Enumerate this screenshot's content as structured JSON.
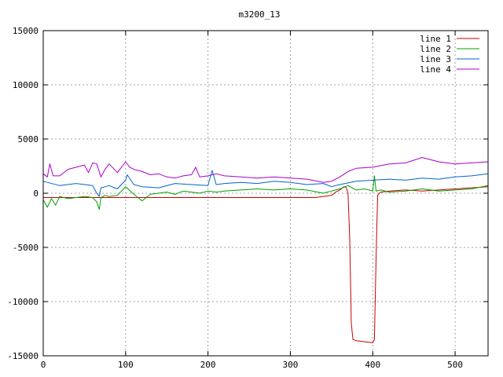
{
  "chart_data": {
    "type": "line",
    "title": "m3200_13",
    "xlabel": "",
    "ylabel": "",
    "xlim": [
      0,
      540
    ],
    "ylim": [
      -15000,
      15000
    ],
    "x_ticks": [
      0,
      100,
      200,
      300,
      400,
      500
    ],
    "y_ticks": [
      -15000,
      -10000,
      -5000,
      0,
      5000,
      10000,
      15000
    ],
    "x_tick_labels": [
      "0",
      "100",
      "200",
      "300",
      "400",
      "500"
    ],
    "y_tick_labels": [
      "-15000",
      "-10000",
      "-5000",
      "0",
      "5000",
      "10000",
      "15000"
    ],
    "grid": true,
    "legend_position": "top-right",
    "series": [
      {
        "name": "line 1",
        "color": "#cc0000",
        "x": [
          0,
          50,
          100,
          150,
          200,
          250,
          300,
          330,
          340,
          350,
          355,
          360,
          365,
          368,
          370,
          372,
          374,
          376,
          380,
          390,
          400,
          402,
          404,
          406,
          408,
          410,
          420,
          440,
          460,
          480,
          500,
          520,
          540
        ],
        "values": [
          -400,
          -400,
          -400,
          -400,
          -400,
          -400,
          -400,
          -400,
          -300,
          -200,
          100,
          300,
          600,
          500,
          0,
          -4000,
          -12000,
          -13500,
          -13600,
          -13700,
          -13800,
          -13500,
          -6000,
          -200,
          0,
          100,
          200,
          300,
          200,
          300,
          400,
          500,
          600
        ]
      },
      {
        "name": "line 2",
        "color": "#00a000",
        "x": [
          0,
          5,
          10,
          15,
          20,
          30,
          40,
          50,
          60,
          65,
          68,
          70,
          75,
          80,
          90,
          100,
          110,
          120,
          130,
          140,
          150,
          160,
          170,
          180,
          190,
          200,
          210,
          220,
          240,
          260,
          280,
          300,
          320,
          340,
          350,
          360,
          370,
          380,
          390,
          400,
          402,
          404,
          410,
          420,
          440,
          460,
          480,
          500,
          520,
          540
        ],
        "values": [
          -600,
          -1300,
          -500,
          -1100,
          -300,
          -500,
          -400,
          -300,
          -400,
          -800,
          -1500,
          -400,
          -200,
          -300,
          -200,
          600,
          -100,
          -700,
          -100,
          0,
          100,
          -100,
          200,
          100,
          0,
          200,
          100,
          200,
          300,
          400,
          300,
          400,
          300,
          0,
          200,
          400,
          700,
          300,
          400,
          200,
          1600,
          200,
          300,
          100,
          200,
          400,
          200,
          300,
          400,
          700
        ]
      },
      {
        "name": "line 3",
        "color": "#0066cc",
        "x": [
          0,
          20,
          40,
          60,
          65,
          68,
          70,
          80,
          90,
          100,
          102,
          110,
          120,
          140,
          160,
          180,
          200,
          205,
          210,
          220,
          240,
          260,
          280,
          300,
          320,
          340,
          350,
          360,
          380,
          400,
          420,
          440,
          460,
          480,
          500,
          520,
          540
        ],
        "values": [
          1100,
          700,
          900,
          700,
          0,
          -300,
          500,
          700,
          400,
          1200,
          1700,
          800,
          600,
          500,
          900,
          800,
          700,
          2100,
          800,
          900,
          1000,
          900,
          1100,
          1000,
          800,
          900,
          600,
          800,
          1100,
          1200,
          1300,
          1200,
          1400,
          1300,
          1500,
          1600,
          1800
        ]
      },
      {
        "name": "line 4",
        "color": "#aa00cc",
        "x": [
          0,
          5,
          8,
          12,
          20,
          30,
          40,
          50,
          55,
          60,
          65,
          70,
          75,
          80,
          90,
          100,
          105,
          110,
          120,
          130,
          140,
          150,
          160,
          170,
          180,
          185,
          190,
          200,
          210,
          220,
          240,
          260,
          280,
          300,
          320,
          340,
          350,
          360,
          370,
          380,
          400,
          420,
          440,
          460,
          480,
          500,
          520,
          540
        ],
        "values": [
          1800,
          1500,
          2700,
          1600,
          1600,
          2200,
          2400,
          2600,
          1900,
          2800,
          2700,
          1500,
          2200,
          2700,
          1900,
          2900,
          2400,
          2200,
          2000,
          1700,
          1800,
          1500,
          1400,
          1600,
          1700,
          2400,
          1500,
          1600,
          1800,
          1600,
          1500,
          1400,
          1500,
          1400,
          1300,
          1000,
          1100,
          1500,
          2000,
          2300,
          2400,
          2700,
          2800,
          3300,
          2900,
          2700,
          2800,
          2900
        ]
      }
    ]
  }
}
